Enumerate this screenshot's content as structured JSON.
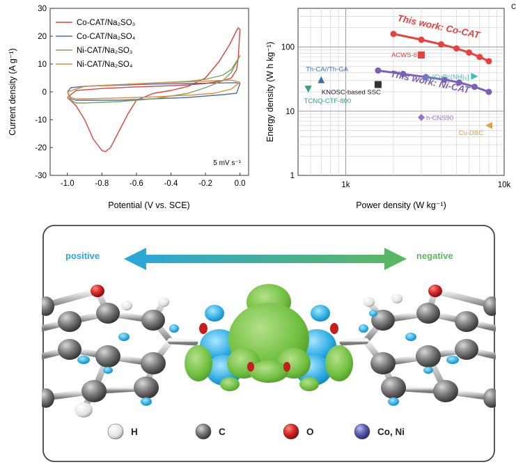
{
  "chart_data": [
    {
      "type": "line",
      "panel": "cyclic-voltammetry",
      "xlabel": "Potential (V vs. SCE)",
      "ylabel": "Current density (A g⁻¹)",
      "xlim": [
        -1.1,
        0.05
      ],
      "ylim": [
        -30,
        30
      ],
      "xticks": [
        "-1.0",
        "-0.8",
        "-0.6",
        "-0.4",
        "-0.2",
        "0.0"
      ],
      "xtick_values": [
        -1.0,
        -0.8,
        -0.6,
        -0.4,
        -0.2,
        0.0
      ],
      "yticks": [
        "-30",
        "-20",
        "-10",
        "0",
        "10",
        "20",
        "30"
      ],
      "ytick_values": [
        -30,
        -20,
        -10,
        0,
        10,
        20,
        30
      ],
      "annotation": "5 mV s⁻¹",
      "legend_position": "top-left",
      "series": [
        {
          "name": "Co-CAT/Na₂SO₃",
          "color": "#e0413a",
          "x": [
            -1.0,
            -0.95,
            -0.9,
            -0.85,
            -0.8,
            -0.78,
            -0.75,
            -0.7,
            -0.65,
            -0.6,
            -0.5,
            -0.4,
            -0.3,
            -0.2,
            -0.12,
            -0.06,
            -0.02,
            -0.01,
            0.0,
            -0.01,
            -0.02,
            -0.05,
            -0.1,
            -0.15,
            -0.2,
            -0.3,
            -0.4,
            -0.6,
            -0.8,
            -0.95,
            -1.0
          ],
          "y": [
            -2,
            -5,
            -10,
            -17,
            -21,
            -21.5,
            -20,
            -14,
            -8,
            -3,
            -0.5,
            0.5,
            2,
            5,
            11,
            17,
            22,
            23,
            22.5,
            12,
            8,
            5,
            4,
            3.5,
            3,
            2.5,
            2.2,
            1.8,
            1.2,
            0.5,
            -2
          ]
        },
        {
          "name": "Co-CAT/Na₂SO₄",
          "color": "#4a6fb5",
          "x": [
            -1.0,
            -0.98,
            -0.95,
            -0.9,
            -0.7,
            -0.5,
            -0.3,
            -0.2,
            -0.1,
            -0.02,
            0.0,
            -0.02,
            -0.1,
            -0.3,
            -0.5,
            -0.7,
            -0.9,
            -0.98,
            -1.0
          ],
          "y": [
            0,
            -2.5,
            -3,
            -3,
            -3,
            -2.5,
            -2,
            -1.5,
            -1,
            -0.5,
            3,
            3.3,
            3.2,
            3,
            2.8,
            2.4,
            2,
            1.5,
            0
          ]
        },
        {
          "name": "Ni-CAT/Na₂SO₃",
          "color": "#7da35a",
          "x": [
            -1.0,
            -0.98,
            -0.95,
            -0.9,
            -0.7,
            -0.5,
            -0.4,
            -0.3,
            -0.2,
            -0.1,
            -0.05,
            0.0,
            -0.05,
            -0.1,
            -0.2,
            -0.3,
            -0.5,
            -0.7,
            -0.9,
            -1.0
          ],
          "y": [
            0,
            -3,
            -4,
            -4,
            -3.5,
            -2.5,
            -1.5,
            -0.5,
            1.5,
            4,
            7,
            13,
            8,
            6,
            4.5,
            3.8,
            3.2,
            2.6,
            2,
            0
          ]
        },
        {
          "name": "Ni-CAT/Na₂SO₄",
          "color": "#e08a3c",
          "x": [
            -1.0,
            -0.98,
            -0.95,
            -0.9,
            -0.7,
            -0.5,
            -0.3,
            -0.15,
            -0.05,
            0.0,
            -0.05,
            -0.15,
            -0.3,
            -0.5,
            -0.7,
            -0.9,
            -1.0
          ],
          "y": [
            0,
            -2,
            -2.5,
            -2.5,
            -2.2,
            -1.8,
            -1.2,
            -0.5,
            1,
            3.5,
            4.2,
            4,
            3.6,
            3.2,
            2.6,
            2,
            0
          ]
        }
      ]
    },
    {
      "type": "scatter",
      "panel": "ragone",
      "xscale": "log",
      "yscale": "log",
      "xlabel": "Power density (W kg⁻¹)",
      "ylabel": "Energy density (W h kg⁻¹)",
      "xlim": [
        500,
        10000
      ],
      "ylim": [
        1,
        400
      ],
      "xticks": [
        "1k",
        "10k"
      ],
      "xtick_values": [
        1000,
        10000
      ],
      "yticks": [
        "1",
        "10",
        "100"
      ],
      "ytick_values": [
        1,
        10,
        100
      ],
      "series": [
        {
          "name": "This work: Co-CAT",
          "color": "#e8413b",
          "marker": "circle",
          "connected": true,
          "x": [
            2000,
            3000,
            4000,
            5000,
            6000,
            7000,
            8000
          ],
          "y": [
            160,
            130,
            110,
            95,
            82,
            70,
            60
          ]
        },
        {
          "name": "This work: Ni-CAT",
          "color": "#7b5fb8",
          "marker": "circle",
          "connected": true,
          "x": [
            1600,
            2300,
            3200,
            4200,
            5200,
            6500,
            8000
          ],
          "y": [
            43,
            38,
            34,
            31,
            28,
            24,
            20
          ]
        }
      ],
      "reference_points": [
        {
          "label": "ACWS-6",
          "x": 3000,
          "y": 75,
          "color": "#e8413b",
          "marker": "square"
        },
        {
          "label": "Ni₃[CuPc(NH)₈]",
          "x": 6500,
          "y": 35,
          "color": "#3bbfb8",
          "marker": "triangle-right"
        },
        {
          "label": "Th-CA//Th-GA",
          "x": 700,
          "y": 31,
          "color": "#3a6fb5",
          "marker": "triangle-up"
        },
        {
          "label": "KNOSC-based SSC",
          "x": 1600,
          "y": 26,
          "color": "#333333",
          "marker": "square"
        },
        {
          "label": "TCNQ-CTF-800",
          "x": 580,
          "y": 22,
          "color": "#2aa57e",
          "marker": "triangle-down"
        },
        {
          "label": "h-CNS90",
          "x": 3000,
          "y": 8,
          "color": "#9a70c8",
          "marker": "diamond"
        },
        {
          "label": "Cu-DBC",
          "x": 8000,
          "y": 6,
          "color": "#e0a040",
          "marker": "triangle-left"
        }
      ]
    }
  ],
  "schematic": {
    "arrow_left_label": "positive",
    "arrow_right_label": "negative",
    "legend": [
      {
        "symbol": "H",
        "color": "#f2f2f2"
      },
      {
        "symbol": "C",
        "color": "#6e6e6e"
      },
      {
        "symbol": "O",
        "color": "#d62828"
      },
      {
        "symbol": "Co, Ni",
        "color": "#5a5fb0"
      }
    ]
  },
  "corner_mark": "c"
}
